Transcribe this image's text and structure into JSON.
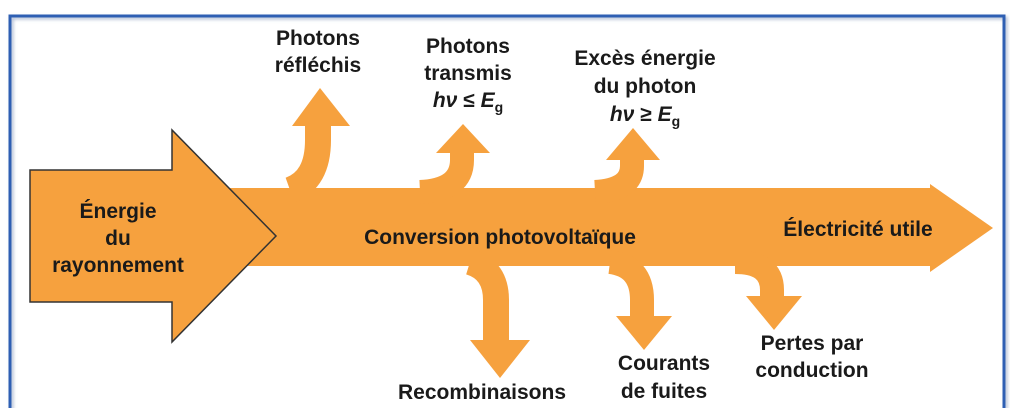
{
  "nodes": [
    {
      "lines": [
        "Énergie",
        "du",
        "rayonnement"
      ]
    },
    {
      "lines": [
        "Conversion photovoltaïque"
      ]
    },
    {
      "lines": [
        "Électricité utile"
      ]
    },
    {
      "lines": [
        "Photons",
        "réfléchis"
      ]
    },
    {
      "lines": [
        "Photons",
        "transmis"
      ],
      "formula": {
        "lhs": "hν",
        "op": "≤",
        "rhs": "E",
        "sub": "g"
      }
    },
    {
      "lines": [
        "Excès énergie",
        "du photon"
      ],
      "formula": {
        "lhs": "hν",
        "op": "≥",
        "rhs": "E",
        "sub": "g"
      }
    },
    {
      "lines": [
        "Recombinaisons"
      ]
    },
    {
      "lines": [
        "Courants",
        "de fuites"
      ]
    },
    {
      "lines": [
        "Pertes par",
        "conduction"
      ]
    }
  ]
}
